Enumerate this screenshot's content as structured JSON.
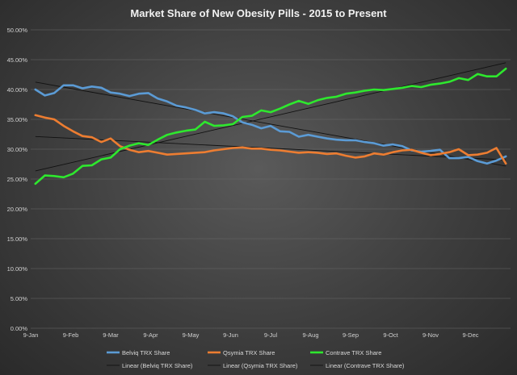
{
  "chart_data": {
    "type": "line",
    "title": "Market Share of New Obesity  Pills - 2015 to Present",
    "xlabel": "",
    "ylabel": "",
    "x_ticks": [
      "9-Jan",
      "9-Feb",
      "9-Mar",
      "9-Apr",
      "9-May",
      "9-Jun",
      "9-Jul",
      "9-Aug",
      "9-Sep",
      "9-Oct",
      "9-Nov",
      "9-Dec"
    ],
    "y_ticks": [
      "0.00%",
      "5.00%",
      "10.00%",
      "15.00%",
      "20.00%",
      "25.00%",
      "30.00%",
      "35.00%",
      "40.00%",
      "45.00%",
      "50.00%"
    ],
    "ylim": [
      0,
      50
    ],
    "week_count": 51,
    "grid": true,
    "legend_position": "bottom",
    "series": [
      {
        "name": "Belviq TRX Share",
        "color": "#5b9bd5",
        "values": [
          40.0,
          39.0,
          39.4,
          40.7,
          40.7,
          40.2,
          40.5,
          40.3,
          39.5,
          39.3,
          38.9,
          39.3,
          39.4,
          38.5,
          38.0,
          37.3,
          37.0,
          36.6,
          36.0,
          36.2,
          36.0,
          35.5,
          34.5,
          34.1,
          33.5,
          33.9,
          33.0,
          32.9,
          32.1,
          32.4,
          32.1,
          31.8,
          31.6,
          31.5,
          31.5,
          31.2,
          31.0,
          30.6,
          30.8,
          30.5,
          29.8,
          29.6,
          29.7,
          29.9,
          28.5,
          28.5,
          28.7,
          28.0,
          27.6,
          28.1,
          28.8
        ]
      },
      {
        "name": "Qsymia TRX Share",
        "color": "#ed7d31",
        "values": [
          35.7,
          35.3,
          35.0,
          33.9,
          33.0,
          32.2,
          32.0,
          31.2,
          31.8,
          30.5,
          29.9,
          29.5,
          29.7,
          29.4,
          29.1,
          29.2,
          29.3,
          29.4,
          29.5,
          29.8,
          30.0,
          30.2,
          30.3,
          30.1,
          30.1,
          29.9,
          29.8,
          29.6,
          29.4,
          29.5,
          29.4,
          29.2,
          29.3,
          28.9,
          28.6,
          28.8,
          29.3,
          29.1,
          29.5,
          29.8,
          29.9,
          29.4,
          29.0,
          29.2,
          29.5,
          30.0,
          29.0,
          29.1,
          29.4,
          30.2,
          27.6
        ]
      },
      {
        "name": "Contrave TRX Share",
        "color": "#2ee82e",
        "values": [
          24.2,
          25.6,
          25.5,
          25.3,
          25.9,
          27.2,
          27.3,
          28.3,
          28.6,
          30.0,
          30.6,
          31.0,
          30.7,
          31.6,
          32.4,
          32.8,
          33.1,
          33.3,
          34.6,
          33.9,
          34.0,
          34.2,
          35.4,
          35.6,
          36.5,
          36.2,
          36.8,
          37.5,
          38.1,
          37.6,
          38.2,
          38.6,
          38.8,
          39.3,
          39.5,
          39.8,
          40.0,
          39.9,
          40.1,
          40.3,
          40.6,
          40.4,
          40.8,
          41.0,
          41.3,
          41.9,
          41.6,
          42.6,
          42.2,
          42.2,
          43.5
        ]
      }
    ],
    "trendlines": [
      {
        "name": "Linear (Belviq TRX Share)",
        "series": "Belviq TRX Share",
        "color": "#111111"
      },
      {
        "name": "Linear (Qsymia TRX Share)",
        "series": "Qsymia TRX Share",
        "color": "#111111"
      },
      {
        "name": "Linear (Contrave TRX Share)",
        "series": "Contrave TRX Share",
        "color": "#111111"
      }
    ]
  }
}
